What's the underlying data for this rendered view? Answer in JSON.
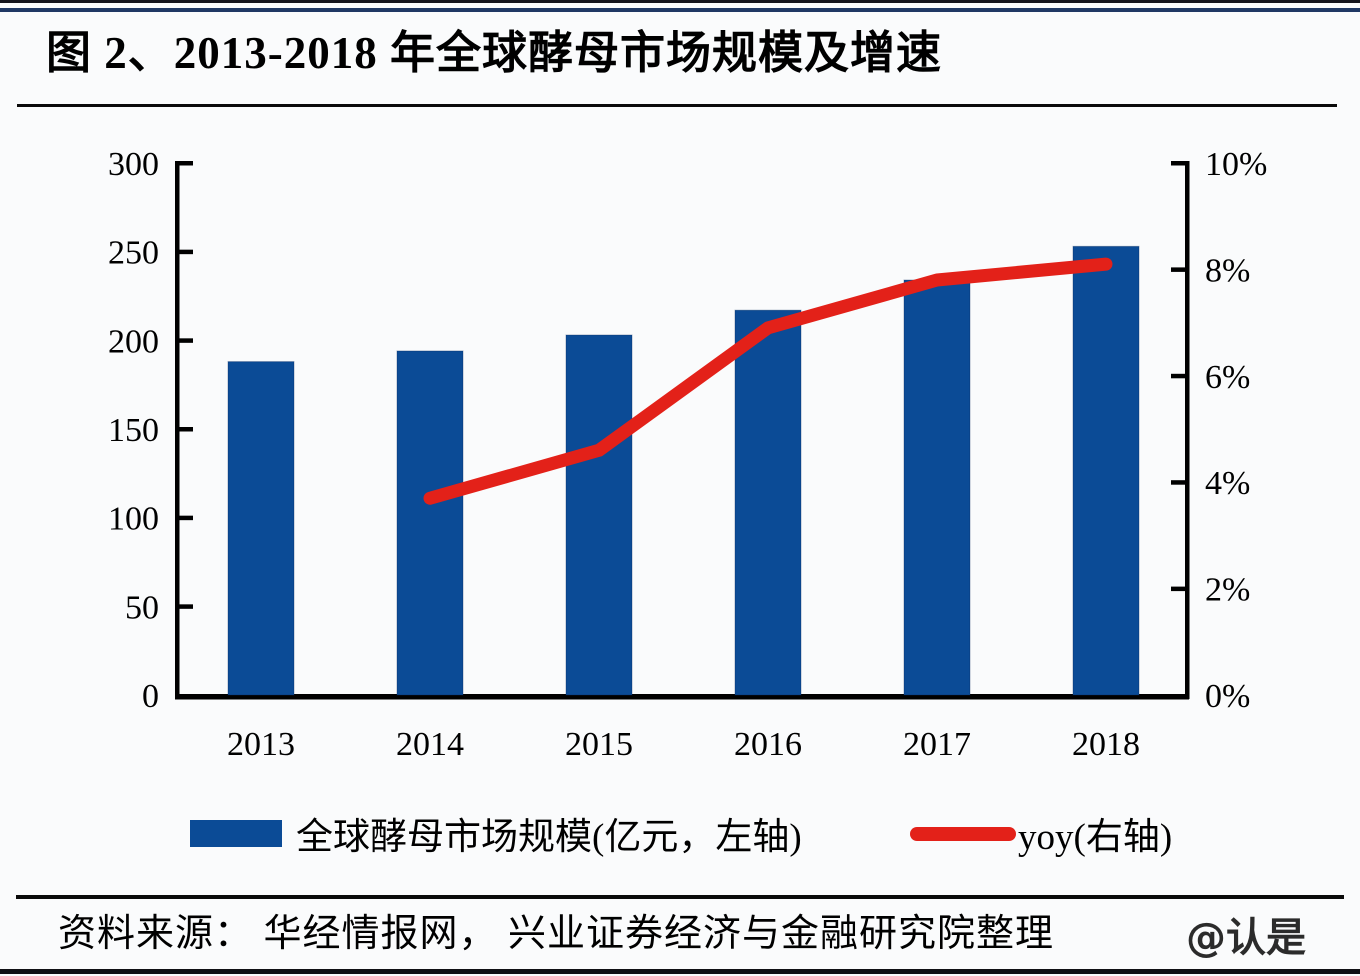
{
  "page": {
    "title": "图 2、2013-2018 年全球酵母市场规模及增速",
    "source_text": "资料来源： 华经情报网， 兴业证券经济与金融研究院整理",
    "watermark": "@认是"
  },
  "legend": {
    "bar_label": "全球酵母市场规模(亿元，左轴)",
    "line_label": "yoy(右轴)"
  },
  "colors": {
    "bar": "#0b4b96",
    "line": "#e32119",
    "axis": "#000000",
    "top_rule": "#1f3864",
    "background": "#fafbfc"
  },
  "chart_data": {
    "type": "combo",
    "title": "2013-2018 年全球酵母市场规模及增速",
    "categories": [
      "2013",
      "2014",
      "2015",
      "2016",
      "2017",
      "2018"
    ],
    "series": [
      {
        "name": "全球酵母市场规模(亿元，左轴)",
        "chart_type": "bar",
        "axis": "left",
        "color": "#0b4b96",
        "values": [
          188,
          194,
          203,
          217,
          234,
          253
        ]
      },
      {
        "name": "yoy(右轴)",
        "chart_type": "line",
        "axis": "right",
        "color": "#e32119",
        "categories": [
          "2014",
          "2015",
          "2016",
          "2017",
          "2018"
        ],
        "values_percent": [
          3.7,
          4.6,
          6.9,
          7.8,
          8.1
        ]
      }
    ],
    "left_axis": {
      "ticks": [
        "0",
        "50",
        "100",
        "150",
        "200",
        "250",
        "300"
      ],
      "tick_values": [
        0,
        50,
        100,
        150,
        200,
        250,
        300
      ],
      "range": [
        0,
        300
      ]
    },
    "right_axis": {
      "ticks": [
        "0%",
        "2%",
        "4%",
        "6%",
        "8%",
        "10%"
      ],
      "tick_values": [
        0,
        2,
        4,
        6,
        8,
        10
      ],
      "range": [
        0,
        10
      ],
      "unit": "%"
    },
    "grid": false,
    "legend_position": "bottom"
  }
}
